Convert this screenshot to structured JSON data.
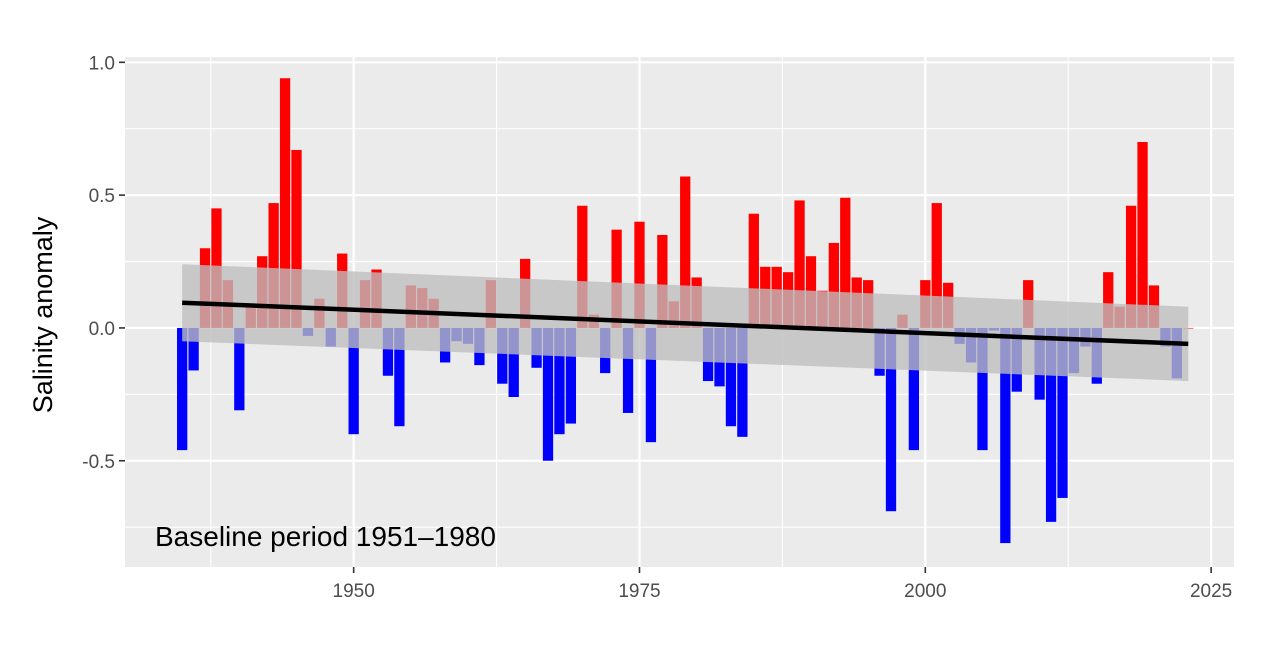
{
  "chart_data": {
    "type": "bar",
    "title": "",
    "xlabel": "",
    "ylabel": "Salinity anomaly",
    "annotation": "Baseline period 1951–1980",
    "xlim": [
      1930,
      2027
    ],
    "ylim": [
      -0.9,
      1.02
    ],
    "x_ticks": [
      1950,
      1975,
      2000,
      2025
    ],
    "y_ticks": [
      1.0,
      0.5,
      0.0,
      -0.5
    ],
    "y_tick_labels": [
      "1.0",
      "0.5",
      "0.0",
      "-0.5"
    ],
    "grid": true,
    "legend": "none",
    "colors": {
      "positive": "#ff0000",
      "negative": "#0000ff",
      "panel_background": "#ebebeb",
      "gridline": "#ffffff",
      "trend_line": "#000000",
      "confidence_band": "#bebebe"
    },
    "series": [
      {
        "x": [
          1935,
          1936,
          1937,
          1938,
          1939,
          1940,
          1941,
          1942,
          1943,
          1944,
          1945,
          1946,
          1947,
          1948,
          1949,
          1950,
          1951,
          1952,
          1953,
          1954,
          1955,
          1956,
          1957,
          1958,
          1959,
          1960,
          1961,
          1962,
          1963,
          1964,
          1965,
          1966,
          1967,
          1968,
          1969,
          1970,
          1971,
          1972,
          1973,
          1974,
          1975,
          1976,
          1977,
          1978,
          1979,
          1980,
          1981,
          1982,
          1983,
          1984,
          1985,
          1986,
          1987,
          1988,
          1989,
          1990,
          1991,
          1992,
          1993,
          1994,
          1995,
          1996,
          1997,
          1998,
          1999,
          2000,
          2001,
          2002,
          2003,
          2004,
          2005,
          2006,
          2007,
          2008,
          2009,
          2010,
          2011,
          2012,
          2013,
          2014,
          2015,
          2016,
          2017,
          2018,
          2019,
          2020,
          2021,
          2022,
          2023
        ],
        "values": [
          -0.46,
          -0.16,
          0.3,
          0.45,
          0.18,
          -0.31,
          0.08,
          0.27,
          0.47,
          0.94,
          0.67,
          -0.03,
          0.11,
          -0.07,
          0.28,
          -0.4,
          0.18,
          0.22,
          -0.18,
          -0.37,
          0.16,
          0.15,
          0.11,
          -0.13,
          -0.05,
          -0.06,
          -0.14,
          0.18,
          -0.21,
          -0.26,
          0.26,
          -0.15,
          -0.5,
          -0.4,
          -0.36,
          0.46,
          0.05,
          -0.17,
          0.37,
          -0.32,
          0.4,
          -0.43,
          0.35,
          0.1,
          0.57,
          0.19,
          -0.2,
          -0.22,
          -0.37,
          -0.41,
          0.43,
          0.23,
          0.23,
          0.21,
          0.48,
          0.27,
          0.14,
          0.32,
          0.49,
          0.19,
          0.18,
          -0.18,
          -0.69,
          0.05,
          -0.46,
          0.18,
          0.47,
          0.17,
          -0.06,
          -0.13,
          -0.46,
          -0.01,
          -0.81,
          -0.24,
          0.18,
          -0.27,
          -0.73,
          -0.64,
          -0.17,
          -0.07,
          -0.21,
          0.21,
          0.08,
          0.46,
          0.7,
          0.16,
          -0.07,
          -0.19,
          0.0
        ]
      }
    ],
    "trend": {
      "x": [
        1935,
        2023
      ],
      "y": [
        0.095,
        -0.06
      ],
      "band_lower": [
        -0.05,
        -0.2
      ],
      "band_upper": [
        0.24,
        0.08
      ]
    }
  }
}
